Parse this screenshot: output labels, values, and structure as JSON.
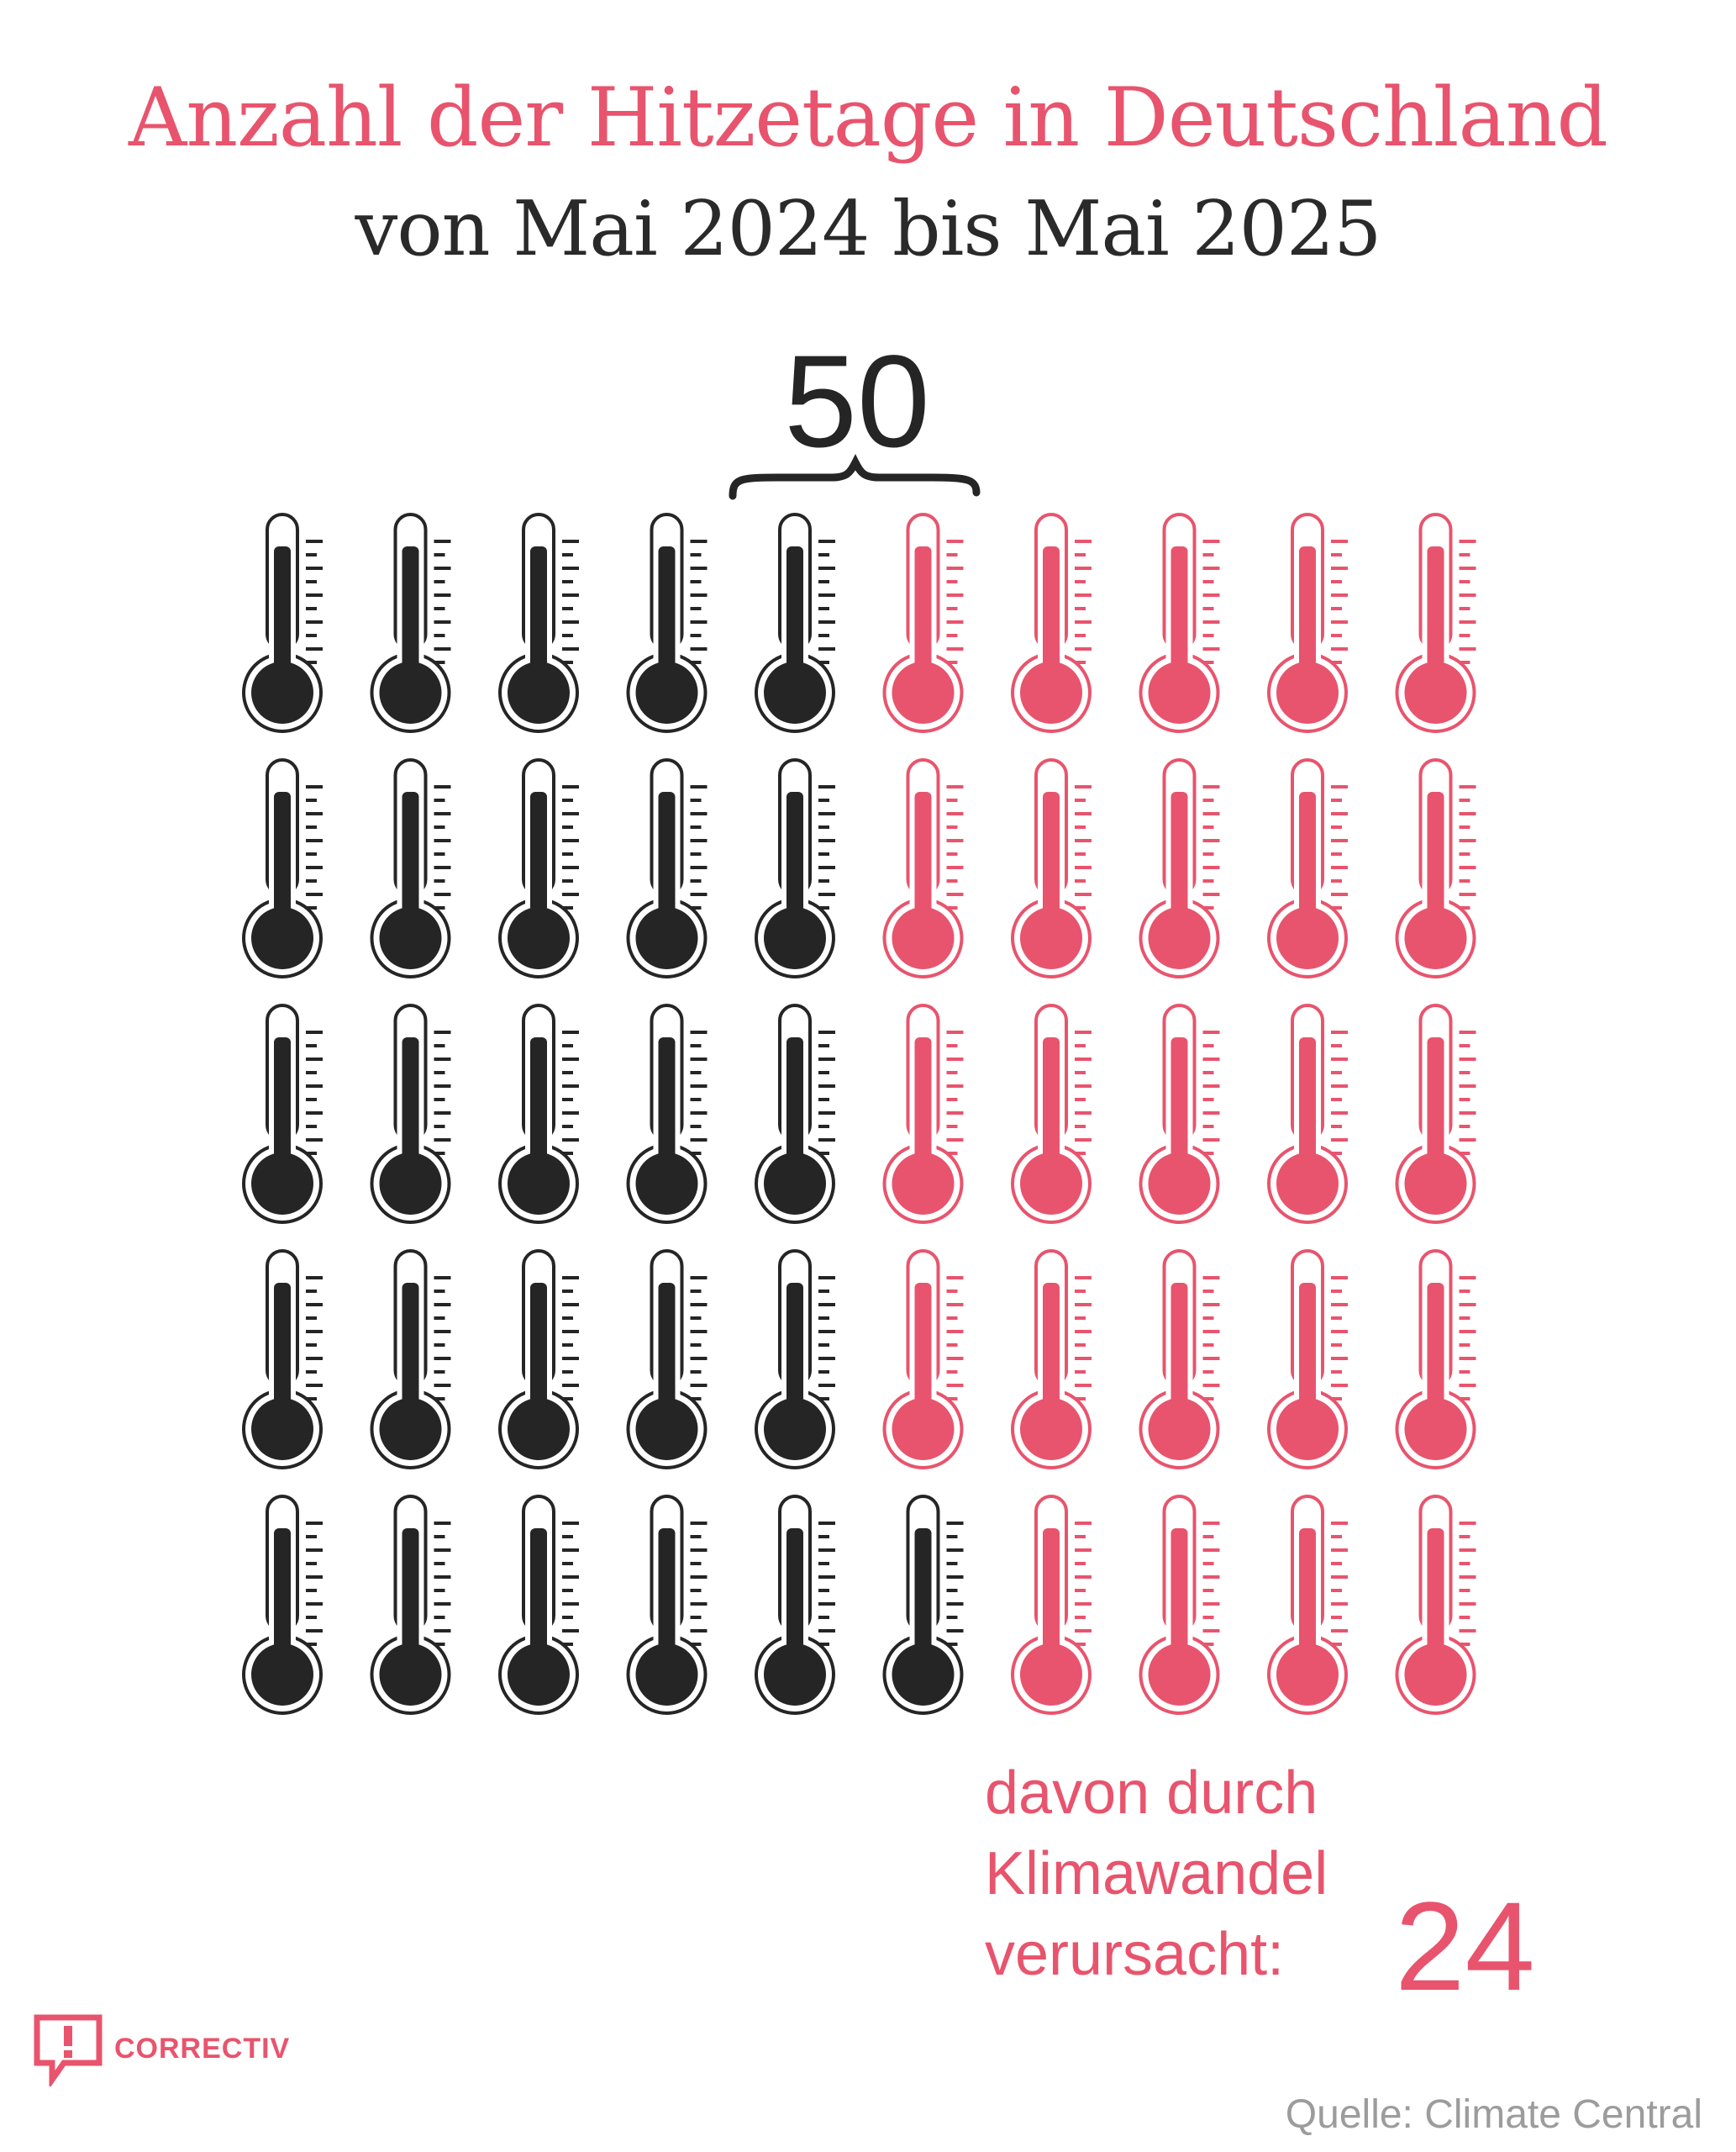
{
  "header": {
    "title": "Anzahl der Hitzetage in Deutschland",
    "subtitle": "von Mai 2024 bis Mai 2025"
  },
  "chart_data": {
    "type": "pictogram",
    "icon": "thermometer-icon",
    "total": 50,
    "highlighted": 24,
    "grid": {
      "rows": 5,
      "columns": 10
    },
    "series": [
      {
        "name": "",
        "value": 26,
        "color": "#262525"
      },
      {
        "name": "davon durch Klimawandel verursacht:",
        "value": 24,
        "color": "#e8546d"
      }
    ],
    "total_label": "50",
    "note": {
      "lines": [
        "davon durch",
        "Klimawandel",
        "verursacht:"
      ],
      "value": "24"
    }
  },
  "colors": {
    "accent": "#e8546d",
    "dark": "#262525",
    "source_gray": "#9c9c9c"
  },
  "footer": {
    "logo": "CORRECTIV",
    "logo_icon": "exclamation-speech-bubble-icon",
    "source": "Quelle: Climate Central"
  }
}
